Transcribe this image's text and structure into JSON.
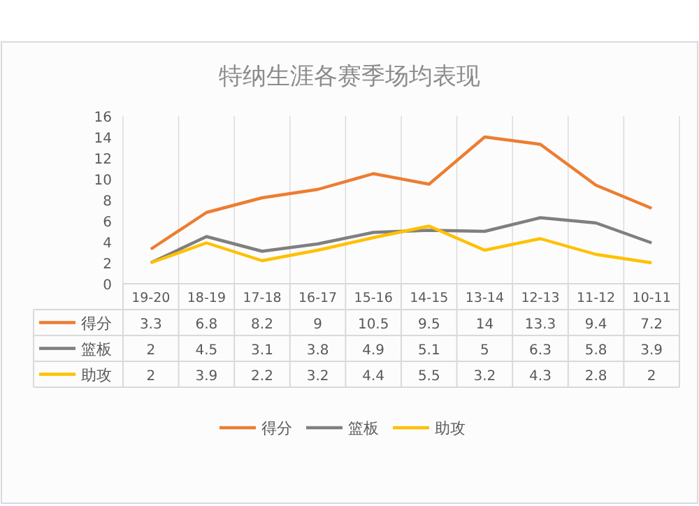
{
  "chart_data": {
    "type": "line",
    "title": "特纳生涯各赛季场均表现",
    "categories": [
      "19-20",
      "18-19",
      "17-18",
      "16-17",
      "15-16",
      "14-15",
      "13-14",
      "12-13",
      "11-12",
      "10-11"
    ],
    "series": [
      {
        "name": "得分",
        "color": "#ed7d31",
        "values": [
          3.3,
          6.8,
          8.2,
          9,
          10.5,
          9.5,
          14,
          13.3,
          9.4,
          7.2
        ]
      },
      {
        "name": "篮板",
        "color": "#7f7f7f",
        "values": [
          2,
          4.5,
          3.1,
          3.8,
          4.9,
          5.1,
          5,
          6.3,
          5.8,
          3.9
        ]
      },
      {
        "name": "助攻",
        "color": "#ffc000",
        "values": [
          2,
          3.9,
          2.2,
          3.2,
          4.4,
          5.5,
          3.2,
          4.3,
          2.8,
          2
        ]
      }
    ],
    "ylim": [
      0,
      16
    ],
    "yticks": [
      0,
      2,
      4,
      6,
      8,
      10,
      12,
      14,
      16
    ],
    "grid": "x",
    "data_labels": true,
    "legend": "bottom",
    "marker": "none",
    "line_style": "solid"
  }
}
